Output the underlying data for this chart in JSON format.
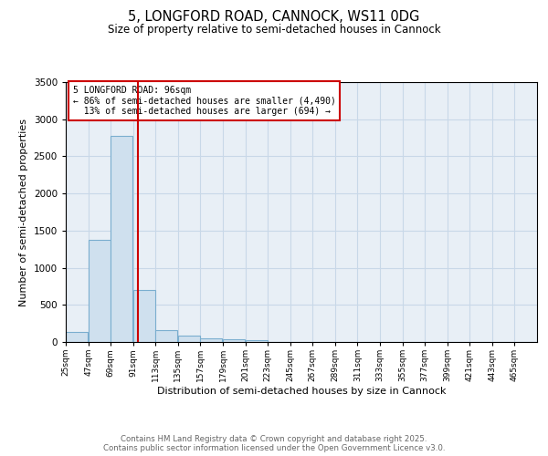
{
  "title": "5, LONGFORD ROAD, CANNOCK, WS11 0DG",
  "subtitle": "Size of property relative to semi-detached houses in Cannock",
  "xlabel": "Distribution of semi-detached houses by size in Cannock",
  "ylabel": "Number of semi-detached properties",
  "property_size": 96,
  "property_label": "5 LONGFORD ROAD: 96sqm",
  "pct_smaller": 86,
  "pct_larger": 13,
  "count_smaller": 4490,
  "count_larger": 694,
  "bin_starts": [
    25,
    47,
    69,
    91,
    113,
    135,
    157,
    179,
    201,
    223,
    245,
    267,
    289,
    311,
    333,
    355,
    377,
    399,
    421,
    443,
    465
  ],
  "bin_width": 22,
  "bar_heights": [
    130,
    1380,
    2780,
    700,
    160,
    80,
    50,
    35,
    30,
    0,
    0,
    0,
    0,
    0,
    0,
    0,
    0,
    0,
    0,
    0,
    0
  ],
  "bar_color": "#cfe0ee",
  "bar_edge_color": "#7aaecf",
  "red_line_color": "#cc0000",
  "annotation_box_color": "#cc0000",
  "grid_color": "#c8d8e8",
  "background_color": "#e8eff6",
  "ylim": [
    0,
    3500
  ],
  "footer_line1": "Contains HM Land Registry data © Crown copyright and database right 2025.",
  "footer_line2": "Contains public sector information licensed under the Open Government Licence v3.0."
}
